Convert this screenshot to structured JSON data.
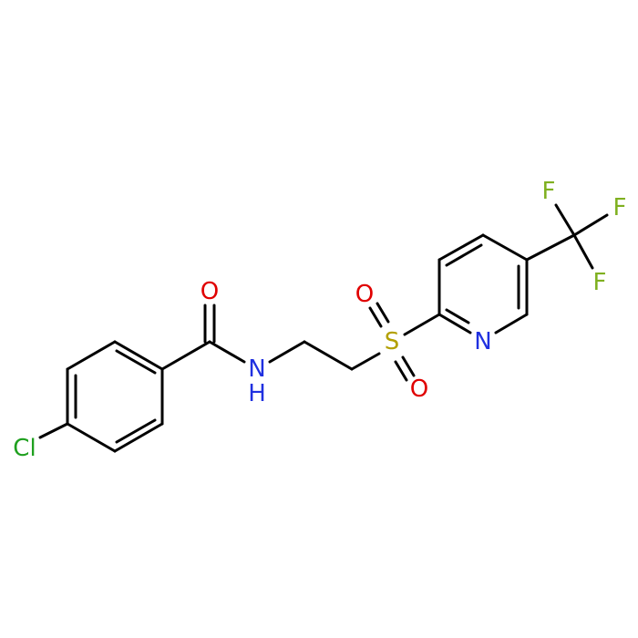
{
  "atoms": [
    {
      "label": "Cl"
    },
    {
      "label": "O"
    },
    {
      "label": "N"
    },
    {
      "label": "H"
    },
    {
      "label": "S"
    },
    {
      "label": "O"
    },
    {
      "label": "O"
    },
    {
      "label": "N"
    },
    {
      "label": "F"
    },
    {
      "label": "F"
    },
    {
      "label": "F"
    }
  ]
}
